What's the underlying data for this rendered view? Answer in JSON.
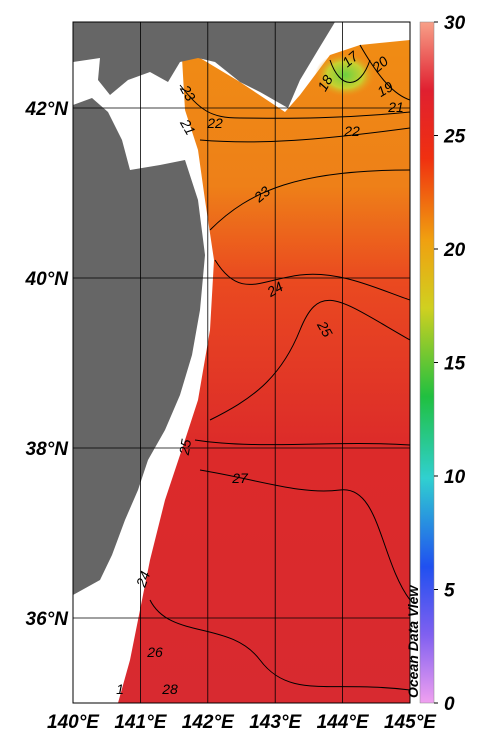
{
  "map": {
    "xticks": [
      {
        "value": 140,
        "label": "140°E"
      },
      {
        "value": 141,
        "label": "141°E"
      },
      {
        "value": 142,
        "label": "142°E"
      },
      {
        "value": 143,
        "label": "143°E"
      },
      {
        "value": 144,
        "label": "144°E"
      },
      {
        "value": 145,
        "label": "145°E"
      }
    ],
    "yticks": [
      {
        "value": 36,
        "label": "36°N"
      },
      {
        "value": 38,
        "label": "38°N"
      },
      {
        "value": 40,
        "label": "40°N"
      },
      {
        "value": 42,
        "label": "42°N"
      }
    ],
    "colorbar": {
      "ticks": [
        0,
        5,
        10,
        15,
        20,
        25,
        30
      ]
    },
    "contour_labels": [
      "23",
      "22",
      "21",
      "22",
      "21",
      "19",
      "20",
      "17",
      "18",
      "23",
      "24",
      "25",
      "25",
      "27",
      "24",
      "26",
      "28",
      "1"
    ],
    "watermark": "Ocean Data View"
  }
}
